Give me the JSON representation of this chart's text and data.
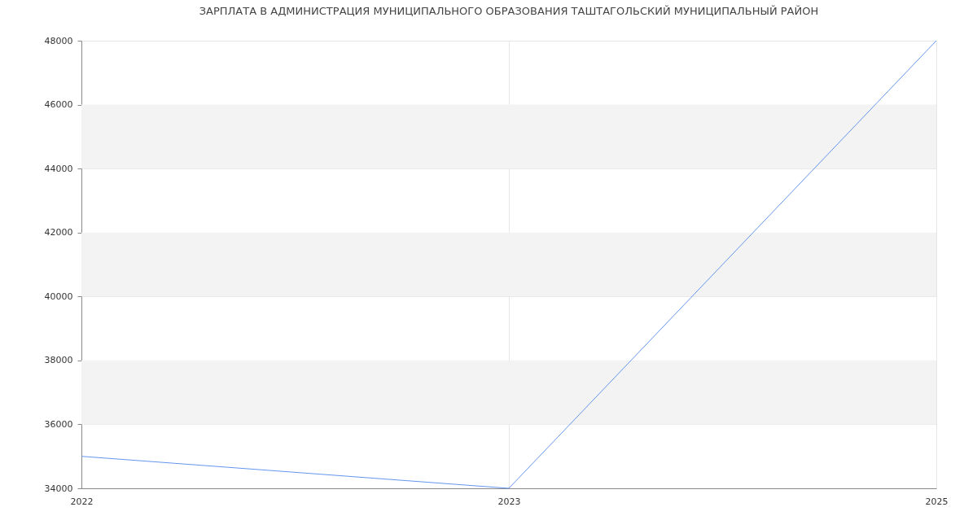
{
  "chart_data": {
    "type": "line",
    "title": "ЗАРПЛАТА В АДМИНИСТРАЦИЯ МУНИЦИПАЛЬНОГО ОБРАЗОВАНИЯ ТАШТАГОЛЬСКИЙ МУНИЦИПАЛЬНЫЙ РАЙОН",
    "categories": [
      "2022",
      "2023",
      "2025"
    ],
    "series": [
      {
        "color": "#6495ed",
        "values": [
          35000,
          34000,
          48000
        ]
      }
    ],
    "ylim": [
      34000,
      48000
    ],
    "yticks": [
      34000,
      36000,
      38000,
      40000,
      42000,
      44000,
      46000,
      48000
    ],
    "bands": [
      {
        "axis": "y",
        "from": 36000,
        "to": 38000,
        "color": "#f3f3f3"
      },
      {
        "axis": "y",
        "from": 40000,
        "to": 42000,
        "color": "#f3f3f3"
      },
      {
        "axis": "y",
        "from": 44000,
        "to": 46000,
        "color": "#f3f3f3"
      }
    ],
    "grid": true,
    "marker": "none",
    "line_style": "solid"
  }
}
